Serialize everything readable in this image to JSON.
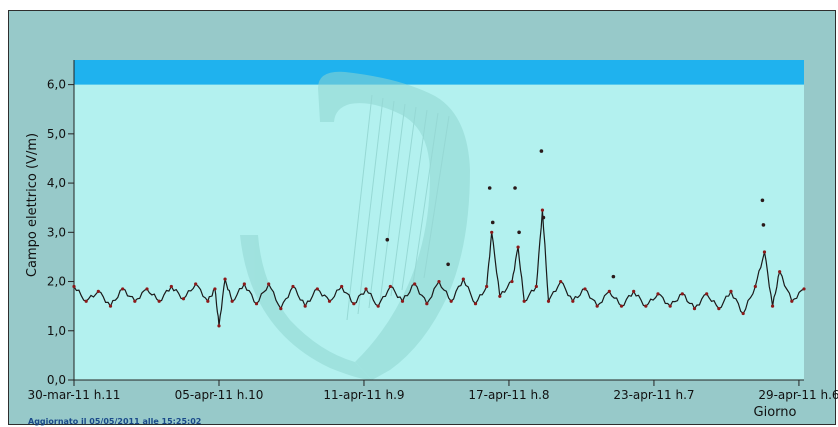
{
  "footer": {
    "updated": "Aggiornato il 05/05/2011 alle 15:25:02"
  },
  "colors": {
    "plot_bg": "#b3f1ef",
    "band": "#1fb2ee",
    "frame": "#97c9c9",
    "series_line": "#1a1a1a",
    "series_points": "#8b1a1a",
    "logo": "#8fd6d1"
  },
  "chart_data": {
    "type": "line",
    "title": "",
    "xlabel": "Giorno",
    "ylabel": "Campo elettrico (V/m)",
    "ylim": [
      0,
      6.5
    ],
    "xlim": [
      "2011-03-30T11:00",
      "2011-04-29T11:00"
    ],
    "y_ticks": [
      "0,0",
      "1,0",
      "2,0",
      "3,0",
      "4,0",
      "5,0",
      "6,0"
    ],
    "x_ticks": [
      {
        "label": "30-mar-11 h.11",
        "date": "2011-03-30T11:00"
      },
      {
        "label": "05-apr-11 h.10",
        "date": "2011-04-05T10:00"
      },
      {
        "label": "11-apr-11 h.9",
        "date": "2011-04-11T09:00"
      },
      {
        "label": "17-apr-11 h.8",
        "date": "2011-04-17T08:00"
      },
      {
        "label": "23-apr-11 h.7",
        "date": "2011-04-23T07:00"
      },
      {
        "label": "29-apr-11 h.6",
        "date": "2011-04-29T06:00"
      }
    ],
    "threshold_band": {
      "from": 6.0,
      "to": 6.5
    },
    "grid": false,
    "series": [
      {
        "values": [
          [
            "2011-03-30T11:00",
            1.9
          ],
          [
            "2011-03-30T23:00",
            1.6
          ],
          [
            "2011-03-31T11:00",
            1.8
          ],
          [
            "2011-03-31T23:00",
            1.5
          ],
          [
            "2011-04-01T11:00",
            1.85
          ],
          [
            "2011-04-01T23:00",
            1.6
          ],
          [
            "2011-04-02T11:00",
            1.85
          ],
          [
            "2011-04-02T23:00",
            1.6
          ],
          [
            "2011-04-03T11:00",
            1.9
          ],
          [
            "2011-04-03T23:00",
            1.65
          ],
          [
            "2011-04-04T11:00",
            1.95
          ],
          [
            "2011-04-04T23:00",
            1.6
          ],
          [
            "2011-04-05T06:00",
            1.85
          ],
          [
            "2011-04-05T10:00",
            1.1
          ],
          [
            "2011-04-05T16:00",
            2.05
          ],
          [
            "2011-04-05T23:00",
            1.6
          ],
          [
            "2011-04-06T11:00",
            1.95
          ],
          [
            "2011-04-06T23:00",
            1.55
          ],
          [
            "2011-04-07T11:00",
            1.95
          ],
          [
            "2011-04-07T23:00",
            1.45
          ],
          [
            "2011-04-08T11:00",
            1.9
          ],
          [
            "2011-04-08T23:00",
            1.5
          ],
          [
            "2011-04-09T11:00",
            1.85
          ],
          [
            "2011-04-09T23:00",
            1.6
          ],
          [
            "2011-04-10T11:00",
            1.9
          ],
          [
            "2011-04-10T23:00",
            1.55
          ],
          [
            "2011-04-11T11:00",
            1.85
          ],
          [
            "2011-04-11T23:00",
            1.5
          ],
          [
            "2011-04-12T11:00",
            1.9
          ],
          [
            "2011-04-12T23:00",
            1.6
          ],
          [
            "2011-04-13T11:00",
            1.95
          ],
          [
            "2011-04-13T23:00",
            1.55
          ],
          [
            "2011-04-14T11:00",
            2.0
          ],
          [
            "2011-04-14T23:00",
            1.6
          ],
          [
            "2011-04-15T11:00",
            2.05
          ],
          [
            "2011-04-15T23:00",
            1.55
          ],
          [
            "2011-04-16T10:00",
            1.9
          ],
          [
            "2011-04-16T15:00",
            3.0
          ],
          [
            "2011-04-16T23:00",
            1.7
          ],
          [
            "2011-04-17T11:00",
            2.0
          ],
          [
            "2011-04-17T17:00",
            2.7
          ],
          [
            "2011-04-17T23:00",
            1.6
          ],
          [
            "2011-04-18T11:00",
            1.9
          ],
          [
            "2011-04-18T17:00",
            3.45
          ],
          [
            "2011-04-18T23:00",
            1.6
          ],
          [
            "2011-04-19T11:00",
            2.0
          ],
          [
            "2011-04-19T23:00",
            1.6
          ],
          [
            "2011-04-20T11:00",
            1.85
          ],
          [
            "2011-04-20T23:00",
            1.5
          ],
          [
            "2011-04-21T11:00",
            1.8
          ],
          [
            "2011-04-21T23:00",
            1.5
          ],
          [
            "2011-04-22T11:00",
            1.8
          ],
          [
            "2011-04-22T23:00",
            1.5
          ],
          [
            "2011-04-23T11:00",
            1.75
          ],
          [
            "2011-04-23T23:00",
            1.5
          ],
          [
            "2011-04-24T11:00",
            1.75
          ],
          [
            "2011-04-24T23:00",
            1.45
          ],
          [
            "2011-04-25T11:00",
            1.75
          ],
          [
            "2011-04-25T23:00",
            1.45
          ],
          [
            "2011-04-26T11:00",
            1.8
          ],
          [
            "2011-04-26T23:00",
            1.35
          ],
          [
            "2011-04-27T11:00",
            1.9
          ],
          [
            "2011-04-27T20:00",
            2.6
          ],
          [
            "2011-04-28T04:00",
            1.5
          ],
          [
            "2011-04-28T11:00",
            2.2
          ],
          [
            "2011-04-28T23:00",
            1.6
          ],
          [
            "2011-04-29T11:00",
            1.85
          ]
        ]
      }
    ],
    "outliers": [
      [
        "2011-04-12T08:00",
        2.85
      ],
      [
        "2011-04-14T20:00",
        2.35
      ],
      [
        "2011-04-16T13:00",
        3.9
      ],
      [
        "2011-04-16T16:00",
        3.2
      ],
      [
        "2011-04-17T14:00",
        3.9
      ],
      [
        "2011-04-17T18:00",
        3.0
      ],
      [
        "2011-04-18T16:00",
        4.65
      ],
      [
        "2011-04-18T18:00",
        3.3
      ],
      [
        "2011-04-21T15:00",
        2.1
      ],
      [
        "2011-04-27T18:00",
        3.65
      ],
      [
        "2011-04-27T19:00",
        3.15
      ]
    ]
  }
}
